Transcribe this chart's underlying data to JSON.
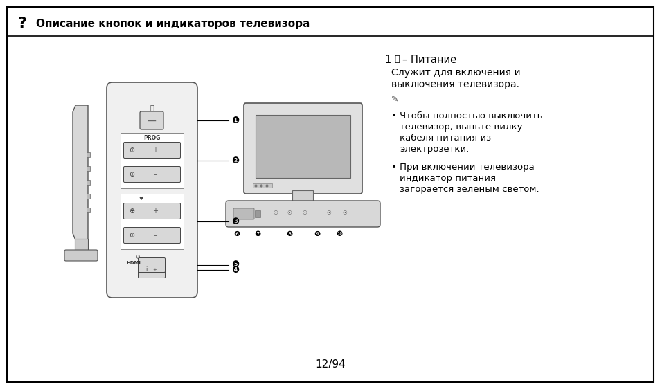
{
  "bg_color": "#ffffff",
  "border_color": "#000000",
  "title_text": "Описание кнопок и индикаторов телевизора",
  "page_number": "12/94",
  "item1_num": "1",
  "item1_power": "⏻",
  "item1_dash": " – ",
  "item1_name": "Питание",
  "item1_desc1": "Служит для включения и",
  "item1_desc2": "выключения телевизора.",
  "bullet1_l1": "• Чтобы полностью выключить",
  "bullet1_l2": "   телевизор, выньте вилку",
  "bullet1_l3": "   кабеля питания из",
  "bullet1_l4": "   электрозетки.",
  "bullet2_l1": "• При включении телевизора",
  "bullet2_l2": "   индикатор питания",
  "bullet2_l3": "   загорается зеленым светом.",
  "panel_color": "#f0f0f0",
  "panel_border": "#555555",
  "button_color": "#d8d8d8",
  "button_border": "#444444",
  "screen_color": "#c0c0c0",
  "bezel_color": "#e8e8e8"
}
